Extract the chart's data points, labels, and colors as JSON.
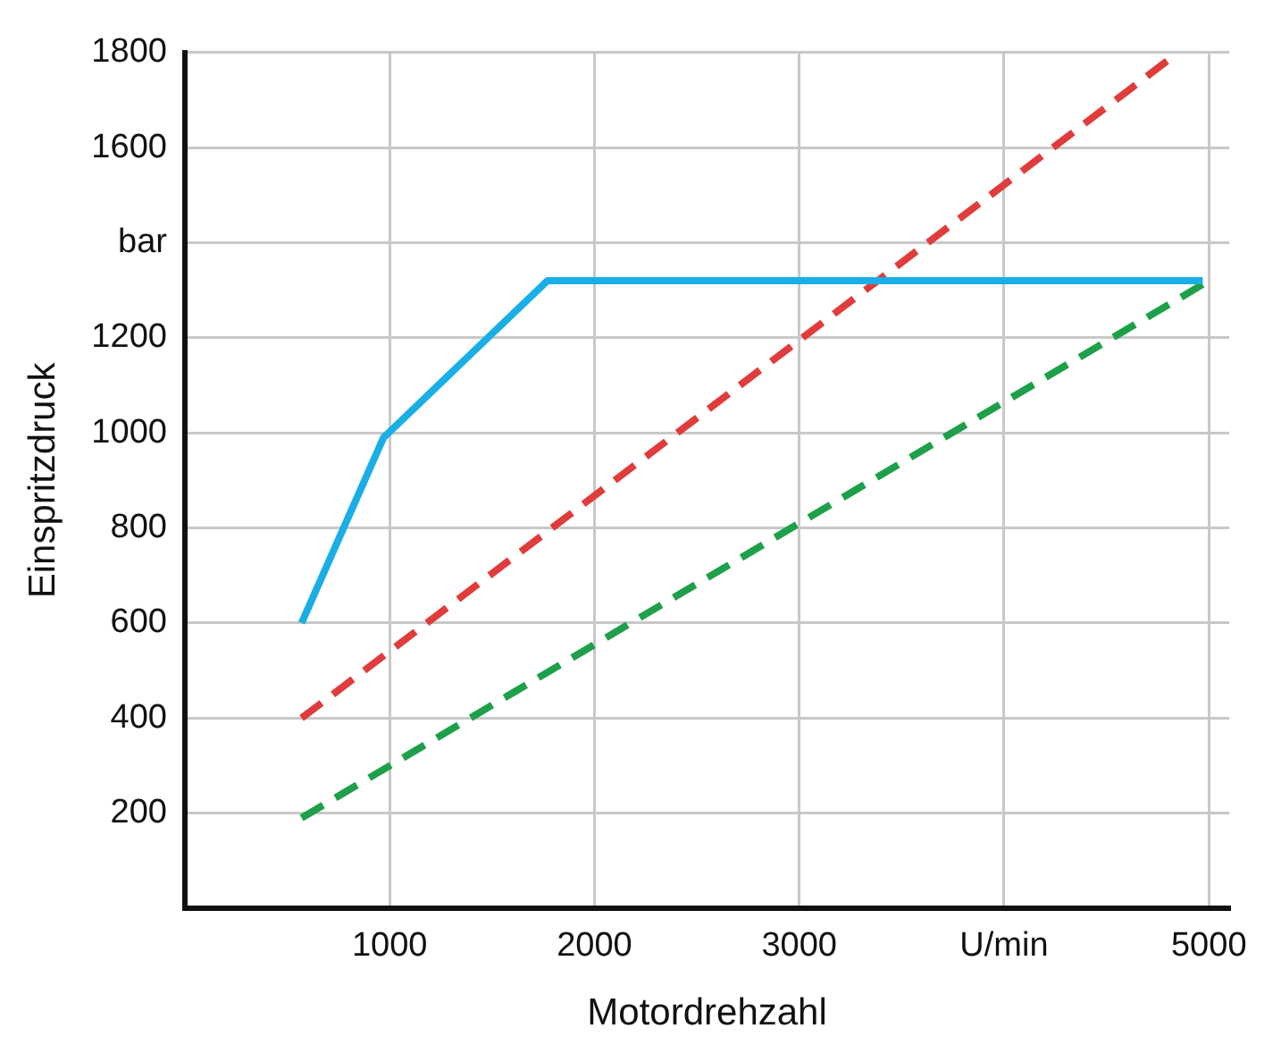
{
  "chart_data": {
    "type": "line",
    "xlabel": "Motordrehzahl",
    "ylabel": "Einspritzdruck",
    "xlim": [
      0,
      5100
    ],
    "ylim": [
      0,
      1800
    ],
    "xticks": [
      1000,
      2000,
      3000,
      {
        "value": 4000,
        "label": "U/min"
      },
      5000
    ],
    "yticks": [
      200,
      400,
      600,
      800,
      1000,
      1200,
      {
        "value": 1400,
        "label": "bar"
      },
      1600,
      1800
    ],
    "grid": true,
    "line_style": "solid",
    "marker": "none",
    "series": [
      {
        "color": "#1aaee6",
        "x": [
          570,
          970,
          1770,
          4970
        ],
        "values": [
          600,
          990,
          1320,
          1320
        ]
      },
      {
        "color": "#e03c3c",
        "x": [
          570,
          4850
        ],
        "values": [
          400,
          1800
        ],
        "line_style": "dashed"
      },
      {
        "color": "#1ea04a",
        "x": [
          570,
          5000
        ],
        "values": [
          190,
          1320
        ],
        "line_style": "dashed"
      }
    ]
  }
}
